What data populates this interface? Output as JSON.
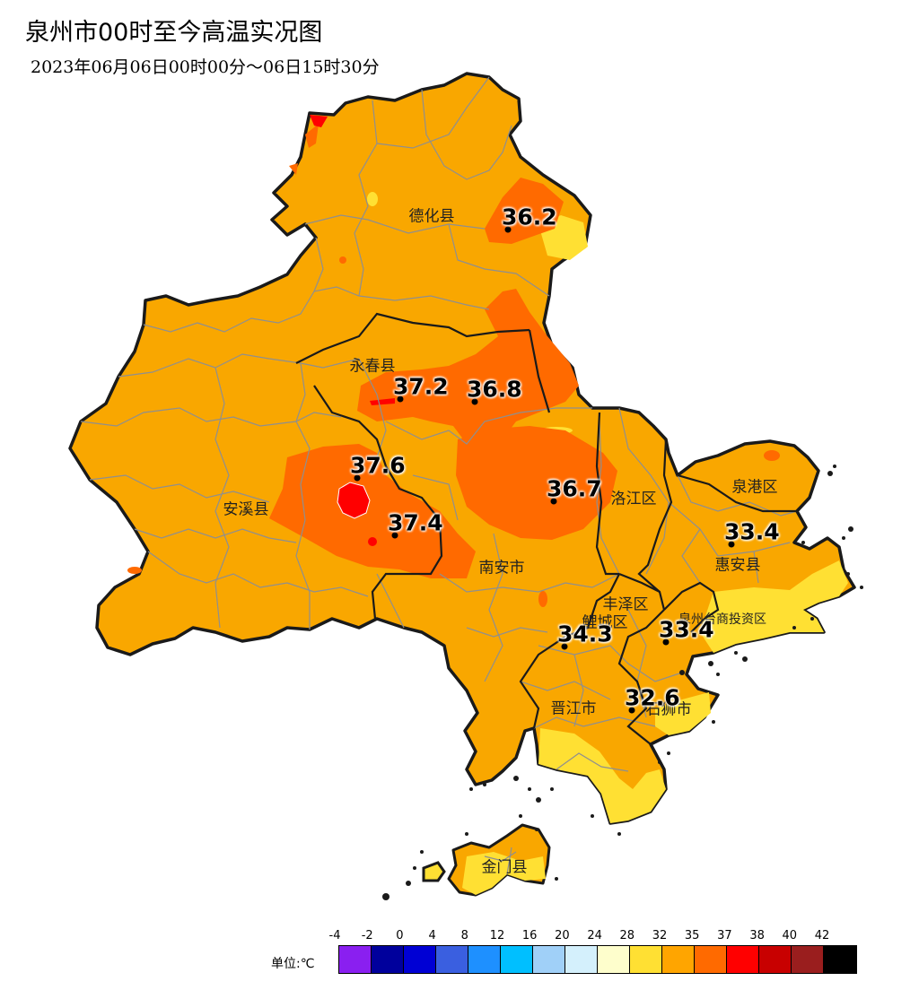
{
  "title": "泉州市00时至今高温实况图",
  "subtitle": "2023年06月06日00时00分～06日15时30分",
  "districts": {
    "dehua": "德化县",
    "yongchun": "永春县",
    "anxi": "安溪县",
    "nanan": "南安市",
    "luojiang": "洛江区",
    "quangang": "泉港区",
    "huian": "惠安县",
    "fengze": "丰泽区",
    "licheng": "鲤城区",
    "taishang": "泉州台商投资区",
    "jinjiang": "晋江市",
    "shishi": "石狮市",
    "jinmen": "金门县"
  },
  "stations": [
    {
      "value": "36.2"
    },
    {
      "value": "37.2"
    },
    {
      "value": "36.8"
    },
    {
      "value": "37.6"
    },
    {
      "value": "36.7"
    },
    {
      "value": "37.4"
    },
    {
      "value": "33.4"
    },
    {
      "value": "34.3"
    },
    {
      "value": "33.4"
    },
    {
      "value": "32.6"
    }
  ],
  "legend": {
    "unit_label": "单位:℃",
    "ticks": [
      "-4",
      "-2",
      "0",
      "4",
      "8",
      "12",
      "16",
      "20",
      "24",
      "28",
      "32",
      "35",
      "37",
      "38",
      "40",
      "42"
    ],
    "colors": [
      "#8a1ff0",
      "#00009c",
      "#0000d4",
      "#3a5fe0",
      "#1e90ff",
      "#00bfff",
      "#a0d0f8",
      "#d4f0fc",
      "#fefecc",
      "#ffe033",
      "#ffa500",
      "#ff6a00",
      "#ff0000",
      "#c80000",
      "#9a1e1e",
      "#000000"
    ]
  },
  "fill_colors": {
    "base": "#f9a700",
    "warm": "#ff6a00",
    "hot": "#ff0000",
    "mild": "#ffe033",
    "border": "#1a1a1a",
    "inner": "#8f8f8f"
  }
}
